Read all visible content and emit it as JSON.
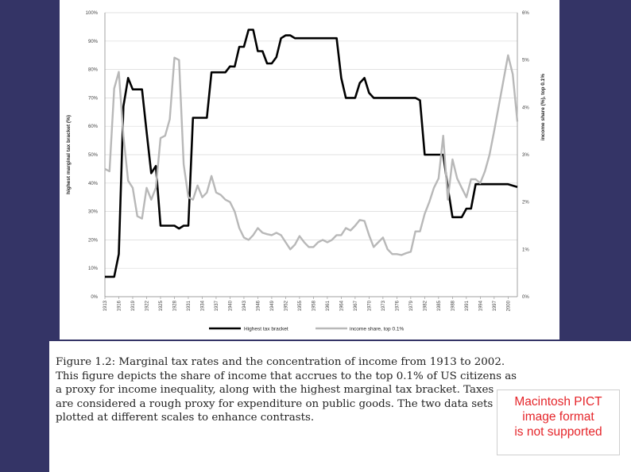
{
  "chart_data": {
    "type": "line",
    "title": "",
    "xlabel": "",
    "ylabel": "highest marginal tax bracket (%)",
    "y2label": "income share (%), top 0.1%",
    "xlim": [
      1913,
      2002
    ],
    "ylim": [
      0,
      100
    ],
    "y2lim": [
      0,
      6
    ],
    "x_ticks": [
      "1913",
      "1916",
      "1919",
      "1922",
      "1925",
      "1928",
      "1931",
      "1934",
      "1937",
      "1940",
      "1943",
      "1946",
      "1949",
      "1952",
      "1955",
      "1958",
      "1961",
      "1964",
      "1967",
      "1970",
      "1973",
      "1976",
      "1979",
      "1982",
      "1985",
      "1988",
      "1991",
      "1994",
      "1997",
      "2000"
    ],
    "y_ticks": [
      "0%",
      "10%",
      "20%",
      "30%",
      "40%",
      "50%",
      "60%",
      "70%",
      "80%",
      "90%",
      "100%"
    ],
    "y2_ticks": [
      "0%",
      "1%",
      "2%",
      "3%",
      "4%",
      "5%",
      "6%"
    ],
    "legend": {
      "position": "bottom-center",
      "entries": [
        "Highest tax bracket",
        "income share, top 0.1%"
      ]
    },
    "colors": {
      "tax": "#000000",
      "share": "#b8b8b8"
    },
    "series": [
      {
        "name": "Highest tax bracket",
        "axis": "left",
        "x": [
          1913,
          1914,
          1915,
          1916,
          1917,
          1918,
          1919,
          1920,
          1921,
          1922,
          1923,
          1924,
          1925,
          1926,
          1927,
          1928,
          1929,
          1930,
          1931,
          1932,
          1933,
          1934,
          1935,
          1936,
          1937,
          1938,
          1939,
          1940,
          1941,
          1942,
          1943,
          1944,
          1945,
          1946,
          1947,
          1948,
          1949,
          1950,
          1951,
          1952,
          1953,
          1954,
          1955,
          1956,
          1957,
          1958,
          1959,
          1960,
          1961,
          1962,
          1963,
          1964,
          1965,
          1966,
          1967,
          1968,
          1969,
          1970,
          1971,
          1972,
          1973,
          1974,
          1975,
          1976,
          1977,
          1978,
          1979,
          1980,
          1981,
          1982,
          1983,
          1984,
          1985,
          1986,
          1987,
          1988,
          1989,
          1990,
          1991,
          1992,
          1993,
          1994,
          1995,
          1996,
          1997,
          1998,
          1999,
          2000,
          2001,
          2002
        ],
        "values": [
          7,
          7,
          7,
          15,
          67,
          77,
          73,
          73,
          73,
          58,
          43.5,
          46,
          25,
          25,
          25,
          25,
          24,
          25,
          25,
          63,
          63,
          63,
          63,
          79,
          79,
          79,
          79,
          81.1,
          81,
          88,
          88,
          94,
          94,
          86.45,
          86.45,
          82.13,
          82.13,
          84.36,
          91,
          92,
          92,
          91,
          91,
          91,
          91,
          91,
          91,
          91,
          91,
          91,
          91,
          77,
          70,
          70,
          70,
          75.25,
          77,
          71.75,
          70,
          70,
          70,
          70,
          70,
          70,
          70,
          70,
          70,
          70,
          69.13,
          50,
          50,
          50,
          50,
          50,
          38.5,
          28,
          28,
          28,
          31,
          31,
          39.6,
          39.6,
          39.6,
          39.6,
          39.6,
          39.6,
          39.6,
          39.6,
          39.1,
          38.6
        ]
      },
      {
        "name": "income share, top 0.1%",
        "axis": "right",
        "x": [
          1913,
          1914,
          1915,
          1916,
          1917,
          1918,
          1919,
          1920,
          1921,
          1922,
          1923,
          1924,
          1925,
          1926,
          1927,
          1928,
          1929,
          1930,
          1931,
          1932,
          1933,
          1934,
          1935,
          1936,
          1937,
          1938,
          1939,
          1940,
          1941,
          1942,
          1943,
          1944,
          1945,
          1946,
          1947,
          1948,
          1949,
          1950,
          1951,
          1952,
          1953,
          1954,
          1955,
          1956,
          1957,
          1958,
          1959,
          1960,
          1961,
          1962,
          1963,
          1964,
          1965,
          1966,
          1967,
          1968,
          1969,
          1970,
          1971,
          1972,
          1973,
          1974,
          1975,
          1976,
          1977,
          1978,
          1979,
          1980,
          1981,
          1982,
          1983,
          1984,
          1985,
          1986,
          1987,
          1988,
          1989,
          1990,
          1991,
          1992,
          1993,
          1994,
          1995,
          1996,
          1997,
          2000,
          2001,
          2002
        ],
        "values": [
          2.7,
          2.65,
          4.4,
          4.75,
          3.4,
          2.45,
          2.3,
          1.7,
          1.65,
          2.3,
          2.05,
          2.3,
          3.35,
          3.4,
          3.75,
          5.05,
          5.0,
          2.8,
          2.1,
          2.05,
          2.35,
          2.1,
          2.2,
          2.55,
          2.2,
          2.15,
          2.05,
          2.0,
          1.8,
          1.45,
          1.25,
          1.2,
          1.3,
          1.45,
          1.35,
          1.32,
          1.3,
          1.35,
          1.3,
          1.15,
          1.0,
          1.1,
          1.28,
          1.15,
          1.05,
          1.05,
          1.15,
          1.2,
          1.15,
          1.2,
          1.3,
          1.3,
          1.45,
          1.4,
          1.5,
          1.62,
          1.6,
          1.3,
          1.05,
          1.15,
          1.25,
          1.0,
          0.9,
          0.9,
          0.88,
          0.92,
          0.95,
          1.38,
          1.38,
          1.75,
          2.0,
          2.3,
          2.5,
          3.4,
          2.05,
          2.9,
          2.5,
          2.3,
          2.1,
          2.48,
          2.48,
          2.4,
          2.65,
          3.0,
          3.5,
          5.1,
          4.7,
          3.7
        ]
      }
    ]
  },
  "caption": {
    "lines": [
      "Figure 1.2: Marginal tax rates and the concentration of income from 1913 to 2002.",
      "This figure depicts the share of income that accrues to the top 0.1% of US citizens as",
      "a proxy for income inequality, along with the highest marginal tax bracket.  Taxes",
      "are considered a rough proxy for expenditure on public goods. The two data sets are",
      "plotted at different scales to enhance contrasts."
    ]
  },
  "placeholder_image": {
    "lines": [
      "Macintosh PICT",
      "image format",
      "is not supported"
    ]
  }
}
